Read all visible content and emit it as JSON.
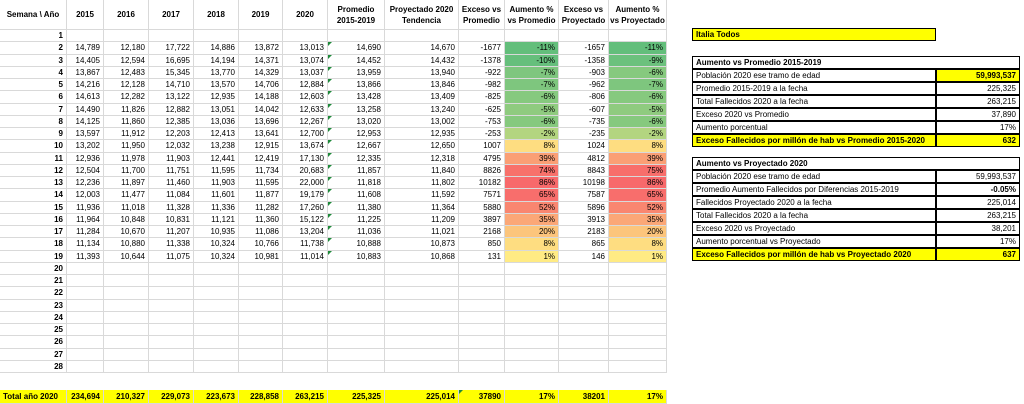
{
  "columns": {
    "week": "Semana \\ Año",
    "y2015": "2015",
    "y2016": "2016",
    "y2017": "2017",
    "y2018": "2018",
    "y2019": "2019",
    "y2020": "2020",
    "avg": "Promedio 2015-2019",
    "proj": "Proyectado 2020 Tendencia",
    "exc_avg": "Exceso vs Promedio",
    "pct_avg": "Aumento % vs Promedio",
    "exc_proj": "Exceso vs Proyectado",
    "pct_proj": "Aumento % vs Proyectado"
  },
  "rows": [
    {
      "w": "1",
      "y2015": "",
      "y2016": "",
      "y2017": "",
      "y2018": "",
      "y2019": "",
      "y2020": "",
      "avg": "",
      "proj": "",
      "exc_avg": "",
      "pct_avg": "",
      "exc_proj": "",
      "pct_proj": ""
    },
    {
      "w": "2",
      "y2015": "14,789",
      "y2016": "12,180",
      "y2017": "17,722",
      "y2018": "14,886",
      "y2019": "13,872",
      "y2020": "13,013",
      "avg": "14,690",
      "proj": "14,670",
      "exc_avg": "-1677",
      "pct_avg": "-11%",
      "exc_proj": "-1657",
      "pct_proj": "-11%"
    },
    {
      "w": "3",
      "y2015": "14,405",
      "y2016": "12,594",
      "y2017": "16,695",
      "y2018": "14,194",
      "y2019": "14,371",
      "y2020": "13,074",
      "avg": "14,452",
      "proj": "14,432",
      "exc_avg": "-1378",
      "pct_avg": "-10%",
      "exc_proj": "-1358",
      "pct_proj": "-9%"
    },
    {
      "w": "4",
      "y2015": "13,867",
      "y2016": "12,483",
      "y2017": "15,345",
      "y2018": "13,770",
      "y2019": "14,329",
      "y2020": "13,037",
      "avg": "13,959",
      "proj": "13,940",
      "exc_avg": "-922",
      "pct_avg": "-7%",
      "exc_proj": "-903",
      "pct_proj": "-6%"
    },
    {
      "w": "5",
      "y2015": "14,216",
      "y2016": "12,128",
      "y2017": "14,710",
      "y2018": "13,570",
      "y2019": "14,706",
      "y2020": "12,884",
      "avg": "13,866",
      "proj": "13,846",
      "exc_avg": "-982",
      "pct_avg": "-7%",
      "exc_proj": "-962",
      "pct_proj": "-7%"
    },
    {
      "w": "6",
      "y2015": "14,613",
      "y2016": "12,282",
      "y2017": "13,122",
      "y2018": "12,935",
      "y2019": "14,188",
      "y2020": "12,603",
      "avg": "13,428",
      "proj": "13,409",
      "exc_avg": "-825",
      "pct_avg": "-6%",
      "exc_proj": "-806",
      "pct_proj": "-6%"
    },
    {
      "w": "7",
      "y2015": "14,490",
      "y2016": "11,826",
      "y2017": "12,882",
      "y2018": "13,051",
      "y2019": "14,042",
      "y2020": "12,633",
      "avg": "13,258",
      "proj": "13,240",
      "exc_avg": "-625",
      "pct_avg": "-5%",
      "exc_proj": "-607",
      "pct_proj": "-5%"
    },
    {
      "w": "8",
      "y2015": "14,125",
      "y2016": "11,860",
      "y2017": "12,385",
      "y2018": "13,036",
      "y2019": "13,696",
      "y2020": "12,267",
      "avg": "13,020",
      "proj": "13,002",
      "exc_avg": "-753",
      "pct_avg": "-6%",
      "exc_proj": "-735",
      "pct_proj": "-6%"
    },
    {
      "w": "9",
      "y2015": "13,597",
      "y2016": "11,912",
      "y2017": "12,203",
      "y2018": "12,413",
      "y2019": "13,641",
      "y2020": "12,700",
      "avg": "12,953",
      "proj": "12,935",
      "exc_avg": "-253",
      "pct_avg": "-2%",
      "exc_proj": "-235",
      "pct_proj": "-2%"
    },
    {
      "w": "10",
      "y2015": "13,202",
      "y2016": "11,950",
      "y2017": "12,032",
      "y2018": "13,238",
      "y2019": "12,915",
      "y2020": "13,674",
      "avg": "12,667",
      "proj": "12,650",
      "exc_avg": "1007",
      "pct_avg": "8%",
      "exc_proj": "1024",
      "pct_proj": "8%"
    },
    {
      "w": "11",
      "y2015": "12,936",
      "y2016": "11,978",
      "y2017": "11,903",
      "y2018": "12,441",
      "y2019": "12,419",
      "y2020": "17,130",
      "avg": "12,335",
      "proj": "12,318",
      "exc_avg": "4795",
      "pct_avg": "39%",
      "exc_proj": "4812",
      "pct_proj": "39%"
    },
    {
      "w": "12",
      "y2015": "12,504",
      "y2016": "11,700",
      "y2017": "11,751",
      "y2018": "11,595",
      "y2019": "11,734",
      "y2020": "20,683",
      "avg": "11,857",
      "proj": "11,840",
      "exc_avg": "8826",
      "pct_avg": "74%",
      "exc_proj": "8843",
      "pct_proj": "75%"
    },
    {
      "w": "13",
      "y2015": "12,236",
      "y2016": "11,897",
      "y2017": "11,460",
      "y2018": "11,903",
      "y2019": "11,595",
      "y2020": "22,000",
      "avg": "11,818",
      "proj": "11,802",
      "exc_avg": "10182",
      "pct_avg": "86%",
      "exc_proj": "10198",
      "pct_proj": "86%"
    },
    {
      "w": "14",
      "y2015": "12,003",
      "y2016": "11,477",
      "y2017": "11,084",
      "y2018": "11,601",
      "y2019": "11,877",
      "y2020": "19,179",
      "avg": "11,608",
      "proj": "11,592",
      "exc_avg": "7571",
      "pct_avg": "65%",
      "exc_proj": "7587",
      "pct_proj": "65%"
    },
    {
      "w": "15",
      "y2015": "11,936",
      "y2016": "11,018",
      "y2017": "11,328",
      "y2018": "11,336",
      "y2019": "11,282",
      "y2020": "17,260",
      "avg": "11,380",
      "proj": "11,364",
      "exc_avg": "5880",
      "pct_avg": "52%",
      "exc_proj": "5896",
      "pct_proj": "52%"
    },
    {
      "w": "16",
      "y2015": "11,964",
      "y2016": "10,848",
      "y2017": "10,831",
      "y2018": "11,121",
      "y2019": "11,360",
      "y2020": "15,122",
      "avg": "11,225",
      "proj": "11,209",
      "exc_avg": "3897",
      "pct_avg": "35%",
      "exc_proj": "3913",
      "pct_proj": "35%"
    },
    {
      "w": "17",
      "y2015": "11,284",
      "y2016": "10,670",
      "y2017": "11,207",
      "y2018": "10,935",
      "y2019": "11,086",
      "y2020": "13,204",
      "avg": "11,036",
      "proj": "11,021",
      "exc_avg": "2168",
      "pct_avg": "20%",
      "exc_proj": "2183",
      "pct_proj": "20%"
    },
    {
      "w": "18",
      "y2015": "11,134",
      "y2016": "10,880",
      "y2017": "11,338",
      "y2018": "10,324",
      "y2019": "10,766",
      "y2020": "11,738",
      "avg": "10,888",
      "proj": "10,873",
      "exc_avg": "850",
      "pct_avg": "8%",
      "exc_proj": "865",
      "pct_proj": "8%"
    },
    {
      "w": "19",
      "y2015": "11,393",
      "y2016": "10,644",
      "y2017": "11,075",
      "y2018": "10,324",
      "y2019": "10,981",
      "y2020": "11,014",
      "avg": "10,883",
      "proj": "10,868",
      "exc_avg": "131",
      "pct_avg": "1%",
      "exc_proj": "146",
      "pct_proj": "1%"
    },
    {
      "w": "20"
    },
    {
      "w": "21"
    },
    {
      "w": "22"
    },
    {
      "w": "23"
    },
    {
      "w": "24"
    },
    {
      "w": "25"
    },
    {
      "w": "26"
    },
    {
      "w": "27"
    },
    {
      "w": "28"
    }
  ],
  "pct_colors": {
    "-11%": "#63be7b",
    "-10%": "#66bf7c",
    "-9%": "#6cc17d",
    "-7%": "#7ec67e",
    "-6%": "#86c97e",
    "-5%": "#8fcb7f",
    "-2%": "#b3d580",
    "1%": "#ffeb84",
    "8%": "#fedd81",
    "20%": "#fcc57c",
    "35%": "#fba777",
    "39%": "#fa9f75",
    "52%": "#f98670",
    "65%": "#f86e6c",
    "74%": "#f8716b",
    "75%": "#f86e6b",
    "86%": "#f8696b"
  },
  "totals": {
    "label": "Total año 2020",
    "y2015": "234,694",
    "y2016": "210,327",
    "y2017": "229,073",
    "y2018": "223,673",
    "y2019": "228,858",
    "y2020": "263,215",
    "avg": "225,325",
    "proj": "225,014",
    "exc_avg": "37890",
    "pct_avg": "17%",
    "exc_proj": "38201",
    "pct_proj": "17%"
  },
  "panel": {
    "title": "Italia Todos",
    "s1": {
      "heading": "Aumento vs Promedio 2015-2019",
      "rows": [
        {
          "label": "Población 2020 ese tramo de edad",
          "value": "59,993,537"
        },
        {
          "label": "Promedio 2015-2019 a la fecha",
          "value": "225,325"
        },
        {
          "label": "Total Fallecidos 2020 a la fecha",
          "value": "263,215"
        },
        {
          "label": "Exceso 2020 vs Promedio",
          "value": "37,890"
        },
        {
          "label": "Aumento porcentual",
          "value": "17%"
        }
      ],
      "result_label": "Exceso Fallecidos por millón de hab vs Promedio 2015-2020",
      "result_value": "632"
    },
    "s2": {
      "heading": "Aumento vs Proyectado 2020",
      "rows": [
        {
          "label": "Población 2020 ese tramo de edad",
          "value": "59,993,537"
        },
        {
          "label": "Promedio Aumento Fallecidos por Diferencias 2015-2019",
          "value": "-0.05%"
        },
        {
          "label": "Fallecidos Proyectado 2020 a la fecha",
          "value": "225,014"
        },
        {
          "label": "Total Fallecidos 2020 a la fecha",
          "value": "263,215"
        },
        {
          "label": "Exceso 2020 vs Proyectado",
          "value": "38,201"
        },
        {
          "label": "Aumento porcentual vs Proyectado",
          "value": "17%"
        }
      ],
      "result_label": "Exceso Fallecidos por millón de hab vs Proyectado 2020",
      "result_value": "637"
    }
  }
}
